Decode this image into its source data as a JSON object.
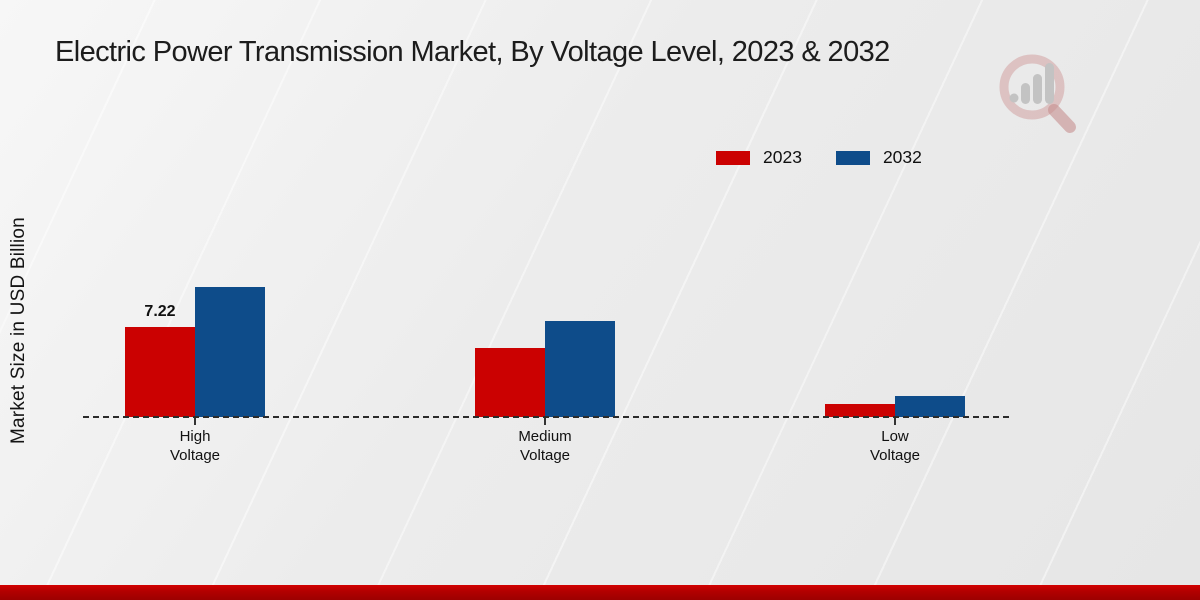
{
  "chart_data": {
    "type": "bar",
    "title": "Electric Power Transmission Market, By Voltage Level, 2023 & 2032",
    "ylabel": "Market Size in USD Billion",
    "xlabel": "",
    "categories": [
      "High Voltage",
      "Medium Voltage",
      "Low Voltage"
    ],
    "series": [
      {
        "name": "2023",
        "color": "#cb0101",
        "values": [
          7.22,
          5.5,
          1.0
        ]
      },
      {
        "name": "2032",
        "color": "#0e4c8a",
        "values": [
          10.4,
          7.7,
          1.7
        ]
      }
    ],
    "data_labels": [
      {
        "series": "2023",
        "category": "High Voltage",
        "text": "7.22"
      }
    ],
    "ylim": [
      0,
      11
    ],
    "grid": false,
    "legend_position": "top-right",
    "baseline_style": "dashed"
  },
  "legend": {
    "items": [
      {
        "label": "2023",
        "color": "#cb0101"
      },
      {
        "label": "2032",
        "color": "#0e4c8a"
      }
    ]
  },
  "brand": {
    "footer_band_color": "#b30000",
    "watermark": "magnifier-bar-chart-logo"
  }
}
